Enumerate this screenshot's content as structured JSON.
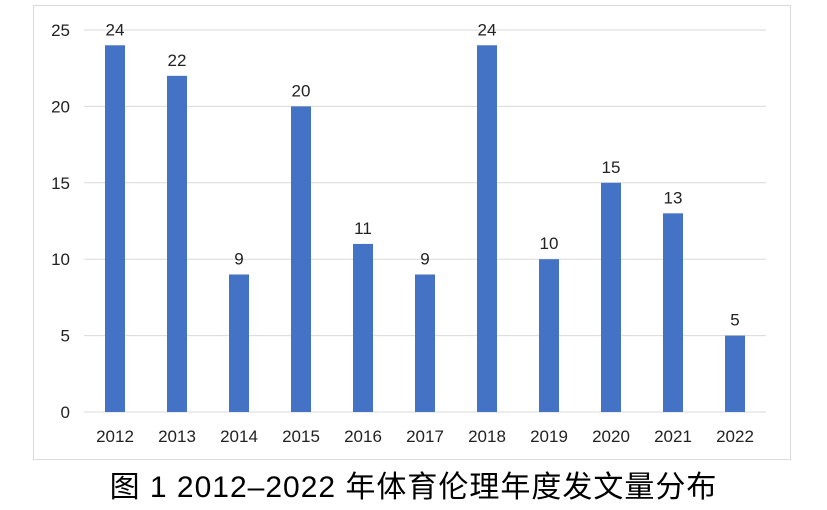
{
  "caption": "图 1 2012–2022 年体育伦理年度发文量分布",
  "chart_data": {
    "type": "bar",
    "categories": [
      "2012",
      "2013",
      "2014",
      "2015",
      "2016",
      "2017",
      "2018",
      "2019",
      "2020",
      "2021",
      "2022"
    ],
    "values": [
      24,
      22,
      9,
      20,
      11,
      9,
      24,
      10,
      15,
      13,
      5
    ],
    "ylim": [
      0,
      25
    ],
    "yticks": [
      0,
      5,
      10,
      15,
      20,
      25
    ],
    "grid": true,
    "bar_color": "#4472c4",
    "gridline_color": "#d9d9d9",
    "data_labels": true,
    "legend": "none"
  }
}
